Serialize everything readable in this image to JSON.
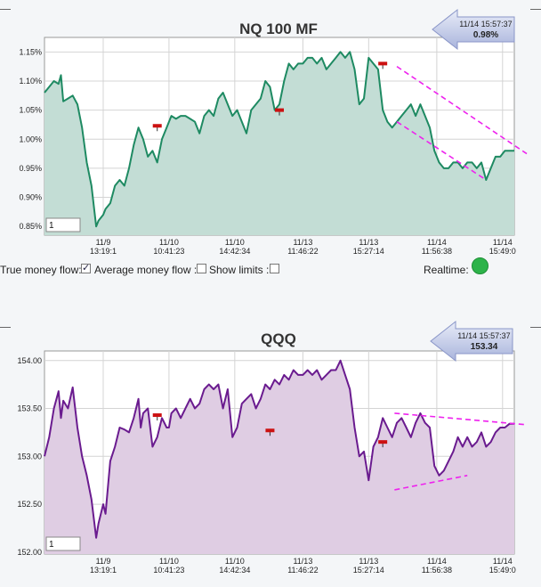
{
  "chart_data": [
    {
      "type": "area",
      "title": "NQ 100 MF",
      "callout": {
        "time": "11/14 15:57:37",
        "value": "0.98%"
      },
      "ylim": [
        0.835,
        1.175
      ],
      "yticks": [
        0.85,
        0.9,
        0.95,
        1.0,
        1.05,
        1.1,
        1.15
      ],
      "ytick_labels": [
        "0.85%",
        "0.90%",
        "0.95%",
        "1.00%",
        "1.05%",
        "1.10%",
        "1.15%"
      ],
      "xticks": [
        {
          "x": 0.125,
          "date": "11/9",
          "time": "13:19:1"
        },
        {
          "x": 0.265,
          "date": "11/10",
          "time": "10:41:23"
        },
        {
          "x": 0.405,
          "date": "11/10",
          "time": "14:42:34"
        },
        {
          "x": 0.55,
          "date": "11/13",
          "time": "11:46:22"
        },
        {
          "x": 0.69,
          "date": "11/13",
          "time": "15:27:14"
        },
        {
          "x": 0.835,
          "date": "11/14",
          "time": "11:56:38"
        },
        {
          "x": 0.975,
          "date": "11/14",
          "time": "15:49:0"
        }
      ],
      "x": [
        0,
        0.01,
        0.02,
        0.03,
        0.035,
        0.04,
        0.05,
        0.06,
        0.07,
        0.08,
        0.09,
        0.1,
        0.11,
        0.115,
        0.125,
        0.13,
        0.14,
        0.15,
        0.16,
        0.17,
        0.18,
        0.19,
        0.2,
        0.205,
        0.21,
        0.22,
        0.23,
        0.24,
        0.25,
        0.26,
        0.265,
        0.27,
        0.28,
        0.29,
        0.3,
        0.31,
        0.32,
        0.33,
        0.34,
        0.35,
        0.36,
        0.37,
        0.38,
        0.39,
        0.4,
        0.41,
        0.42,
        0.43,
        0.44,
        0.45,
        0.46,
        0.47,
        0.48,
        0.49,
        0.5,
        0.51,
        0.52,
        0.53,
        0.54,
        0.55,
        0.56,
        0.57,
        0.58,
        0.59,
        0.6,
        0.61,
        0.62,
        0.63,
        0.64,
        0.65,
        0.66,
        0.67,
        0.68,
        0.69,
        0.7,
        0.71,
        0.72,
        0.73,
        0.74,
        0.75,
        0.76,
        0.77,
        0.78,
        0.79,
        0.8,
        0.81,
        0.82,
        0.83,
        0.84,
        0.85,
        0.86,
        0.87,
        0.88,
        0.89,
        0.9,
        0.91,
        0.92,
        0.93,
        0.94,
        0.95,
        0.96,
        0.97,
        0.98,
        0.99,
        1.0
      ],
      "values": [
        1.08,
        1.09,
        1.1,
        1.095,
        1.11,
        1.065,
        1.07,
        1.075,
        1.06,
        1.02,
        0.96,
        0.92,
        0.85,
        0.86,
        0.87,
        0.88,
        0.89,
        0.92,
        0.93,
        0.92,
        0.95,
        0.99,
        1.02,
        1.01,
        1.0,
        0.97,
        0.98,
        0.96,
        1.0,
        1.02,
        1.03,
        1.04,
        1.035,
        1.04,
        1.04,
        1.035,
        1.03,
        1.01,
        1.04,
        1.05,
        1.04,
        1.07,
        1.08,
        1.06,
        1.04,
        1.05,
        1.03,
        1.01,
        1.05,
        1.06,
        1.07,
        1.1,
        1.09,
        1.05,
        1.06,
        1.1,
        1.13,
        1.12,
        1.13,
        1.13,
        1.14,
        1.14,
        1.13,
        1.14,
        1.12,
        1.13,
        1.14,
        1.15,
        1.14,
        1.15,
        1.12,
        1.06,
        1.07,
        1.14,
        1.13,
        1.12,
        1.05,
        1.03,
        1.02,
        1.03,
        1.04,
        1.05,
        1.06,
        1.04,
        1.06,
        1.04,
        1.02,
        0.98,
        0.96,
        0.95,
        0.95,
        0.96,
        0.96,
        0.95,
        0.96,
        0.96,
        0.95,
        0.96,
        0.93,
        0.95,
        0.97,
        0.97,
        0.98,
        0.98,
        0.98
      ],
      "markers": [
        {
          "x": 0.24,
          "y": 1.023
        },
        {
          "x": 0.5,
          "y": 1.05
        },
        {
          "x": 0.72,
          "y": 1.13
        }
      ],
      "trendlines": [
        {
          "x1": 0.75,
          "y1": 1.125,
          "x2": 1.0,
          "y2": 0.975
        },
        {
          "x1": 0.75,
          "y1": 1.03,
          "x2": 0.94,
          "y2": 0.93
        }
      ],
      "input_value": "1",
      "colors": {
        "line": "#1e8a62",
        "fill": "#c3ddd5",
        "trend": "#ee22ee",
        "marker": "#cc1111"
      }
    },
    {
      "type": "area",
      "title": "QQQ",
      "callout": {
        "time": "11/14 15:57:37",
        "value": "153.34"
      },
      "ylim": [
        151.98,
        154.1
      ],
      "yticks": [
        152.0,
        152.5,
        153.0,
        153.5,
        154.0
      ],
      "ytick_labels": [
        "152.00",
        "152.50",
        "153.00",
        "153.50",
        "154.00"
      ],
      "xticks": [
        {
          "x": 0.125,
          "date": "11/9",
          "time": "13:19:1"
        },
        {
          "x": 0.265,
          "date": "11/10",
          "time": "10:41:23"
        },
        {
          "x": 0.405,
          "date": "11/10",
          "time": "14:42:34"
        },
        {
          "x": 0.55,
          "date": "11/13",
          "time": "11:46:22"
        },
        {
          "x": 0.69,
          "date": "11/13",
          "time": "15:27:14"
        },
        {
          "x": 0.835,
          "date": "11/14",
          "time": "11:56:38"
        },
        {
          "x": 0.975,
          "date": "11/14",
          "time": "15:49:0"
        }
      ],
      "x": [
        0,
        0.01,
        0.02,
        0.03,
        0.035,
        0.04,
        0.05,
        0.06,
        0.07,
        0.08,
        0.09,
        0.1,
        0.11,
        0.115,
        0.125,
        0.13,
        0.14,
        0.15,
        0.16,
        0.17,
        0.18,
        0.19,
        0.2,
        0.205,
        0.21,
        0.22,
        0.23,
        0.24,
        0.25,
        0.26,
        0.265,
        0.27,
        0.28,
        0.29,
        0.3,
        0.31,
        0.32,
        0.33,
        0.34,
        0.35,
        0.36,
        0.37,
        0.38,
        0.39,
        0.4,
        0.41,
        0.42,
        0.43,
        0.44,
        0.45,
        0.46,
        0.47,
        0.48,
        0.49,
        0.5,
        0.51,
        0.52,
        0.53,
        0.54,
        0.55,
        0.56,
        0.57,
        0.58,
        0.59,
        0.6,
        0.61,
        0.62,
        0.63,
        0.64,
        0.65,
        0.66,
        0.67,
        0.68,
        0.69,
        0.7,
        0.71,
        0.72,
        0.73,
        0.74,
        0.75,
        0.76,
        0.77,
        0.78,
        0.79,
        0.8,
        0.81,
        0.82,
        0.83,
        0.84,
        0.85,
        0.86,
        0.87,
        0.88,
        0.89,
        0.9,
        0.91,
        0.92,
        0.93,
        0.94,
        0.95,
        0.96,
        0.97,
        0.98,
        0.99,
        1.0
      ],
      "values": [
        153.0,
        153.2,
        153.5,
        153.68,
        153.4,
        153.58,
        153.5,
        153.72,
        153.3,
        153.0,
        152.8,
        152.55,
        152.15,
        152.3,
        152.5,
        152.4,
        152.95,
        153.1,
        153.3,
        153.28,
        153.25,
        153.4,
        153.6,
        153.3,
        153.45,
        153.5,
        153.1,
        153.2,
        153.4,
        153.3,
        153.3,
        153.45,
        153.5,
        153.4,
        153.5,
        153.6,
        153.5,
        153.55,
        153.7,
        153.75,
        153.7,
        153.75,
        153.5,
        153.7,
        153.2,
        153.3,
        153.55,
        153.6,
        153.65,
        153.5,
        153.6,
        153.75,
        153.7,
        153.8,
        153.75,
        153.85,
        153.8,
        153.9,
        153.85,
        153.85,
        153.9,
        153.85,
        153.9,
        153.8,
        153.85,
        153.9,
        153.9,
        154.0,
        153.85,
        153.7,
        153.3,
        153.0,
        153.05,
        152.75,
        153.1,
        153.2,
        153.4,
        153.3,
        153.2,
        153.35,
        153.4,
        153.3,
        153.2,
        153.35,
        153.45,
        153.35,
        153.3,
        152.9,
        152.8,
        152.85,
        152.95,
        153.05,
        153.2,
        153.1,
        153.2,
        153.1,
        153.15,
        153.25,
        153.1,
        153.15,
        153.25,
        153.3,
        153.3,
        153.34,
        153.34
      ],
      "markers": [
        {
          "x": 0.24,
          "y": 153.43
        },
        {
          "x": 0.48,
          "y": 153.27
        },
        {
          "x": 0.72,
          "y": 153.15
        }
      ],
      "trendlines": [
        {
          "x1": 0.745,
          "y1": 153.45,
          "x2": 1.0,
          "y2": 153.33
        },
        {
          "x1": 0.745,
          "y1": 152.65,
          "x2": 0.9,
          "y2": 152.8
        }
      ],
      "input_value": "1",
      "colors": {
        "line": "#6a1b8f",
        "fill": "#dfcde3",
        "trend": "#ee22ee",
        "marker": "#cc1111"
      }
    }
  ],
  "controls": {
    "true_money_flow": "True money flow:",
    "average_money_flow": "Average money flow :",
    "show_limits": "Show limits :",
    "realtime": "Realtime:",
    "true_money_flow_checked": true,
    "average_money_flow_checked": false,
    "show_limits_checked": false
  }
}
